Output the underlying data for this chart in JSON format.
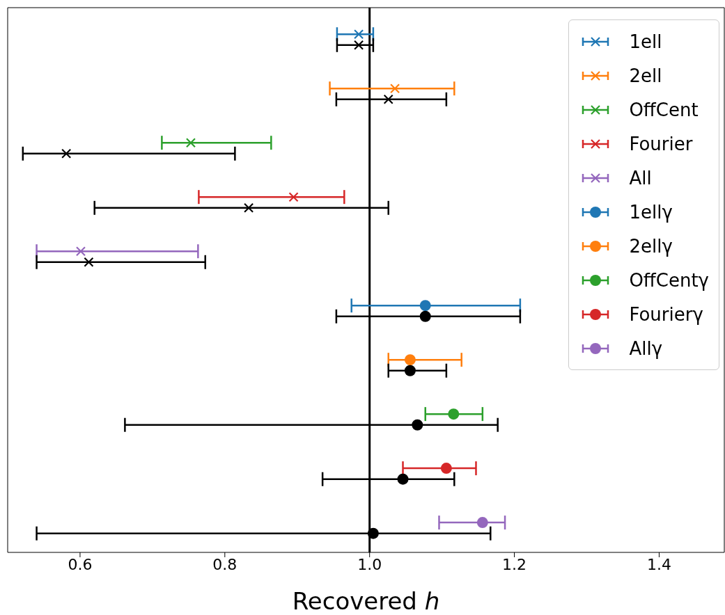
{
  "chart_data": {
    "type": "scatter",
    "orientation": "horizontal",
    "xlabel": "Recovered ℎ",
    "categories": [
      null,
      null,
      null,
      null,
      null,
      null,
      null,
      null,
      null,
      null
    ],
    "xlim": [
      0.5,
      1.49
    ],
    "xticks": [
      0.6,
      0.8,
      {
        "value": 1.0,
        "label": "1.0"
      },
      1.2,
      1.4
    ],
    "tick_labels": "x",
    "grid": false,
    "legend": "top right",
    "ref_lines": [
      {
        "axis": "x",
        "value": 1.0,
        "color": "#000000",
        "line_style": "solid"
      }
    ],
    "series": [
      {
        "name": "1ell",
        "color": "#1f77b4",
        "marker": "cross",
        "values": [
          0.985,
          null,
          null,
          null,
          null,
          null,
          null,
          null,
          null,
          null
        ],
        "errors": [
          [
            0.955,
            1.005
          ],
          null,
          null,
          null,
          null,
          null,
          null,
          null,
          null,
          null
        ]
      },
      {
        "name": "2ell",
        "color": "#ff7f0e",
        "marker": "cross",
        "values": [
          null,
          1.035,
          null,
          null,
          null,
          null,
          null,
          null,
          null,
          null
        ],
        "errors": [
          null,
          [
            0.945,
            1.117
          ],
          null,
          null,
          null,
          null,
          null,
          null,
          null,
          null
        ]
      },
      {
        "name": "OffCent",
        "color": "#2ca02c",
        "marker": "cross",
        "values": [
          null,
          null,
          0.753,
          null,
          null,
          null,
          null,
          null,
          null,
          null
        ],
        "errors": [
          null,
          null,
          [
            0.713,
            0.864
          ],
          null,
          null,
          null,
          null,
          null,
          null,
          null
        ]
      },
      {
        "name": "Fourier",
        "color": "#d62728",
        "marker": "cross",
        "values": [
          null,
          null,
          null,
          0.895,
          null,
          null,
          null,
          null,
          null,
          null
        ],
        "errors": [
          null,
          null,
          null,
          [
            0.764,
            0.965
          ],
          null,
          null,
          null,
          null,
          null,
          null
        ]
      },
      {
        "name": "All",
        "color": "#9467bd",
        "marker": "cross",
        "values": [
          null,
          null,
          null,
          null,
          0.601,
          null,
          null,
          null,
          null,
          null
        ],
        "errors": [
          null,
          null,
          null,
          null,
          [
            0.54,
            0.763
          ],
          null,
          null,
          null,
          null,
          null
        ]
      },
      {
        "name": "1ellγ",
        "color": "#1f77b4",
        "marker": "circle",
        "values": [
          null,
          null,
          null,
          null,
          null,
          1.077,
          null,
          null,
          null,
          null
        ],
        "errors": [
          null,
          null,
          null,
          null,
          null,
          [
            0.975,
            1.208
          ],
          null,
          null,
          null,
          null
        ]
      },
      {
        "name": "2ellγ",
        "color": "#ff7f0e",
        "marker": "circle",
        "values": [
          null,
          null,
          null,
          null,
          null,
          null,
          1.056,
          null,
          null,
          null
        ],
        "errors": [
          null,
          null,
          null,
          null,
          null,
          null,
          [
            1.026,
            1.127
          ],
          null,
          null,
          null
        ]
      },
      {
        "name": "OffCentγ",
        "color": "#2ca02c",
        "marker": "circle",
        "values": [
          null,
          null,
          null,
          null,
          null,
          null,
          null,
          1.116,
          null,
          null
        ],
        "errors": [
          null,
          null,
          null,
          null,
          null,
          null,
          null,
          [
            1.077,
            1.156
          ],
          null,
          null
        ]
      },
      {
        "name": "Fourierγ",
        "color": "#d62728",
        "marker": "circle",
        "values": [
          null,
          null,
          null,
          null,
          null,
          null,
          null,
          null,
          1.106,
          null
        ],
        "errors": [
          null,
          null,
          null,
          null,
          null,
          null,
          null,
          null,
          [
            1.046,
            1.147
          ],
          null
        ]
      },
      {
        "name": "Allγ",
        "color": "#9467bd",
        "marker": "circle",
        "values": [
          null,
          null,
          null,
          null,
          null,
          null,
          null,
          null,
          null,
          1.156
        ],
        "errors": [
          null,
          null,
          null,
          null,
          null,
          null,
          null,
          null,
          null,
          [
            1.096,
            1.187
          ]
        ]
      },
      {
        "color": "#000000",
        "marker": "cross",
        "values": [
          0.985,
          1.026,
          0.581,
          0.833,
          0.612,
          null,
          null,
          null,
          null,
          null
        ],
        "errors": [
          [
            0.955,
            1.005
          ],
          [
            0.954,
            1.106
          ],
          [
            0.521,
            0.814
          ],
          [
            0.62,
            1.026
          ],
          [
            0.54,
            0.773
          ],
          null,
          null,
          null,
          null,
          null
        ]
      },
      {
        "color": "#000000",
        "marker": "circle",
        "values": [
          null,
          null,
          null,
          null,
          null,
          1.077,
          1.056,
          1.066,
          1.046,
          1.005
        ],
        "errors": [
          null,
          null,
          null,
          null,
          null,
          [
            0.954,
            1.208
          ],
          [
            1.026,
            1.106
          ],
          [
            0.662,
            1.177
          ],
          [
            0.935,
            1.117
          ],
          [
            0.54,
            1.167
          ]
        ]
      }
    ]
  }
}
